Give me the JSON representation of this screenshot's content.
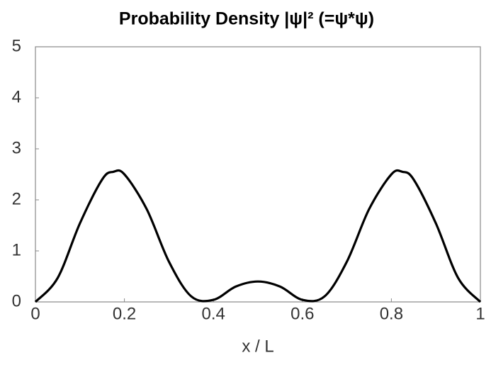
{
  "chart_data": {
    "type": "line",
    "title": "Probability Density |ψ|² (=ψ*ψ)",
    "x_label": "x / L",
    "x": [
      0,
      0.05,
      0.1,
      0.15,
      0.175,
      0.2,
      0.25,
      0.3,
      0.35,
      0.4,
      0.45,
      0.5,
      0.55,
      0.6,
      0.65,
      0.7,
      0.75,
      0.8,
      0.825,
      0.85,
      0.9,
      0.95,
      1
    ],
    "values": [
      0,
      0.47,
      1.54,
      2.4,
      2.55,
      2.5,
      1.82,
      0.79,
      0.11,
      0.04,
      0.3,
      0.4,
      0.3,
      0.04,
      0.11,
      0.79,
      1.82,
      2.5,
      2.55,
      2.4,
      1.54,
      0.47,
      0
    ],
    "color": "#000000",
    "xlim": [
      0,
      1
    ],
    "xticks": [
      0,
      0.2,
      0.4,
      0.6,
      0.8,
      1
    ],
    "ylim": [
      0,
      5
    ],
    "yticks": [
      0,
      1,
      2,
      3,
      4,
      5
    ],
    "grid": false
  }
}
